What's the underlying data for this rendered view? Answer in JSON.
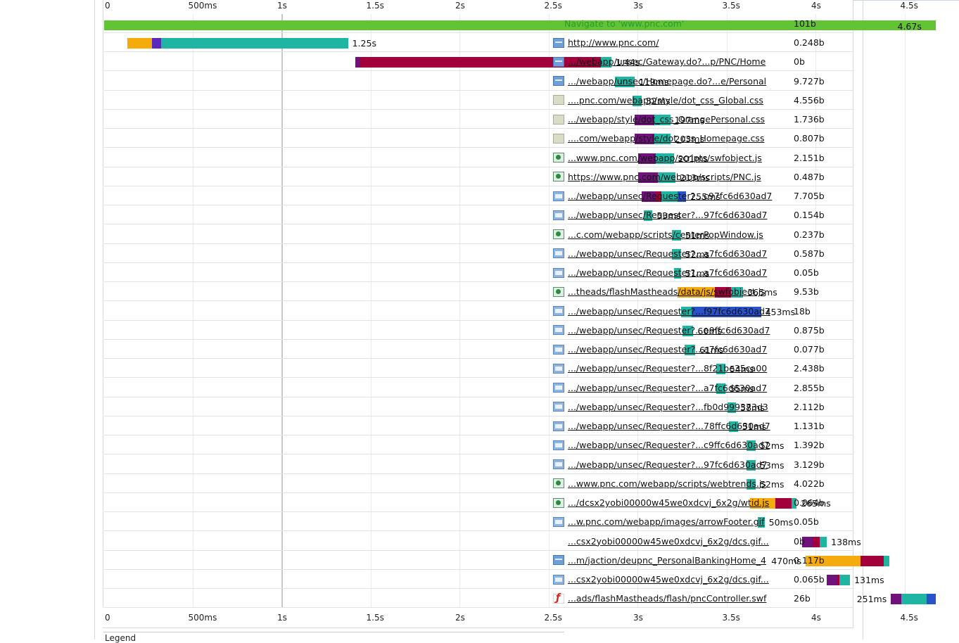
{
  "timeline": {
    "axis_max_seconds": 4.67,
    "ticks": [
      "0",
      "500ms",
      "1s",
      "1.5s",
      "2s",
      "2.5s",
      "3s",
      "3.5s",
      "4s",
      "4.5s"
    ],
    "tick_values": [
      0,
      0.5,
      1,
      1.5,
      2,
      2.5,
      3,
      3.5,
      4,
      4.5
    ]
  },
  "colors": {
    "navigate": "#62c434",
    "dns": "#f5ab0c",
    "connect": "#71117b",
    "ssl": "#a3003b",
    "send": "#5a2bbb",
    "wait": "#1fb5a3",
    "receive": "#2952cc"
  },
  "navigate": {
    "label": "Navigate to 'www.pnc.com'",
    "duration": "4.67s",
    "size": "101b",
    "end": 4.67
  },
  "requests": [
    {
      "url": "http://www.pnc.com/",
      "size": "0.248b",
      "icon": "html",
      "duration": "1.25s",
      "label_side": "right",
      "segments": [
        {
          "phase": "dns",
          "start": 0.13,
          "end": 0.27
        },
        {
          "phase": "send",
          "start": 0.27,
          "end": 0.32
        },
        {
          "phase": "wait",
          "start": 0.32,
          "end": 1.37
        }
      ]
    },
    {
      "url": ".../webapp/unsec/Gateway.do?...p/PNC/Home",
      "size": "0b",
      "icon": "html",
      "duration": "1.44s",
      "label_side": "right",
      "segments": [
        {
          "phase": "connect",
          "start": 1.41,
          "end": 1.44
        },
        {
          "phase": "ssl",
          "start": 1.44,
          "end": 2.79
        },
        {
          "phase": "wait",
          "start": 2.79,
          "end": 2.85
        }
      ]
    },
    {
      "url": ".../webapp/unsec/Homepage.do?...e/Personal",
      "size": "9.727b",
      "icon": "html",
      "duration": "119ms",
      "label_side": "right",
      "segments": [
        {
          "phase": "wait",
          "start": 2.87,
          "end": 2.98
        }
      ]
    },
    {
      "url": "....pnc.com/webapp/style/dot_css_Global.css",
      "size": "4.556b",
      "icon": "css",
      "duration": "52ms",
      "label_side": "right",
      "segments": [
        {
          "phase": "wait",
          "start": 2.97,
          "end": 3.02
        }
      ]
    },
    {
      "url": ".../webapp/style/dot_css_OrangePersonal.css",
      "size": "1.736b",
      "icon": "css",
      "duration": "197ms",
      "label_side": "right",
      "segments": [
        {
          "phase": "connect",
          "start": 2.98,
          "end": 3.09
        },
        {
          "phase": "wait",
          "start": 3.09,
          "end": 3.18
        }
      ]
    },
    {
      "url": "....com/webapp/style/dot_css_Homepage.css",
      "size": "0.807b",
      "icon": "css",
      "duration": "203ms",
      "label_side": "right",
      "segments": [
        {
          "phase": "connect",
          "start": 2.98,
          "end": 3.09
        },
        {
          "phase": "wait",
          "start": 3.09,
          "end": 3.18
        }
      ]
    },
    {
      "url": "...www.pnc.com/webapp/scripts/swfobject.js",
      "size": "2.151b",
      "icon": "js",
      "duration": "201ms",
      "label_side": "right",
      "segments": [
        {
          "phase": "connect",
          "start": 3.0,
          "end": 3.1
        },
        {
          "phase": "wait",
          "start": 3.1,
          "end": 3.2
        }
      ]
    },
    {
      "url": "https://www.pnc.com/webapp/scripts/PNC.js",
      "size": "0.487b",
      "icon": "js",
      "duration": "213ms",
      "label_side": "right",
      "segments": [
        {
          "phase": "connect",
          "start": 3.0,
          "end": 3.11
        },
        {
          "phase": "wait",
          "start": 3.11,
          "end": 3.21
        }
      ]
    },
    {
      "url": ".../webapp/unsec/Requester?...c97fc6d630ad7",
      "size": "7.705b",
      "icon": "generic",
      "duration": "255ms",
      "label_side": "right",
      "segments": [
        {
          "phase": "connect",
          "start": 3.02,
          "end": 3.1
        },
        {
          "phase": "ssl",
          "start": 3.1,
          "end": 3.13
        },
        {
          "phase": "wait",
          "start": 3.13,
          "end": 3.22
        },
        {
          "phase": "receive",
          "start": 3.22,
          "end": 3.27
        }
      ]
    },
    {
      "url": ".../webapp/unsec/Requester?...97fc6d630ad7",
      "size": "0.154b",
      "icon": "generic",
      "duration": "53ms",
      "label_side": "right",
      "segments": [
        {
          "phase": "wait",
          "start": 3.03,
          "end": 3.08
        }
      ]
    },
    {
      "url": "...c.com/webapp/scripts/centerPopWindow.js",
      "size": "0.237b",
      "icon": "js",
      "duration": "51ms",
      "label_side": "right",
      "segments": [
        {
          "phase": "wait",
          "start": 3.19,
          "end": 3.24
        }
      ]
    },
    {
      "url": ".../webapp/unsec/Requester?...a7fc6d630ad7",
      "size": "0.587b",
      "icon": "generic",
      "duration": "52ms",
      "label_side": "right",
      "segments": [
        {
          "phase": "wait",
          "start": 3.19,
          "end": 3.24
        }
      ]
    },
    {
      "url": ".../webapp/unsec/Requester?...a7fc6d630ad7",
      "size": "0.05b",
      "icon": "generic",
      "duration": "51ms",
      "label_side": "right",
      "segments": [
        {
          "phase": "wait",
          "start": 3.2,
          "end": 3.24
        }
      ]
    },
    {
      "url": "...theads/flashMastheads/data/js/swfobject.js",
      "size": "9.53b",
      "icon": "js",
      "duration": "365ms",
      "label_side": "right",
      "segments": [
        {
          "phase": "dns",
          "start": 3.22,
          "end": 3.43
        },
        {
          "phase": "ssl",
          "start": 3.43,
          "end": 3.52
        },
        {
          "phase": "wait",
          "start": 3.52,
          "end": 3.59
        }
      ]
    },
    {
      "url": ".../webapp/unsec/Requester?...f97fc6d630ad7",
      "size": "18b",
      "icon": "generic",
      "duration": "453ms",
      "label_side": "right",
      "segments": [
        {
          "phase": "wait",
          "start": 3.24,
          "end": 3.3
        },
        {
          "phase": "receive",
          "start": 3.3,
          "end": 3.69
        }
      ]
    },
    {
      "url": ".../webapp/unsec/Requester?...e9ffc6d630ad7",
      "size": "0.875b",
      "icon": "generic",
      "duration": "60ms",
      "label_side": "right",
      "segments": [
        {
          "phase": "wait",
          "start": 3.25,
          "end": 3.31
        }
      ]
    },
    {
      "url": ".../webapp/unsec/Requester?...a7fc6d630ad7",
      "size": "0.077b",
      "icon": "generic",
      "duration": "61ms",
      "label_side": "right",
      "segments": [
        {
          "phase": "wait",
          "start": 3.26,
          "end": 3.32
        }
      ]
    },
    {
      "url": ".../webapp/unsec/Requester?...8f21be35ca00",
      "size": "2.438b",
      "icon": "generic",
      "duration": "54ms",
      "label_side": "right",
      "segments": [
        {
          "phase": "wait",
          "start": 3.44,
          "end": 3.49
        }
      ]
    },
    {
      "url": ".../webapp/unsec/Requester?...a7fc6d630ad7",
      "size": "2.855b",
      "icon": "generic",
      "duration": "55ms",
      "label_side": "right",
      "segments": [
        {
          "phase": "wait",
          "start": 3.44,
          "end": 3.49
        }
      ]
    },
    {
      "url": ".../webapp/unsec/Requester?...fb0d999373d3",
      "size": "2.112b",
      "icon": "generic",
      "duration": "58ms",
      "label_side": "right",
      "segments": [
        {
          "phase": "wait",
          "start": 3.5,
          "end": 3.55
        }
      ]
    },
    {
      "url": ".../webapp/unsec/Requester?...78ffc6d630ad7",
      "size": "1.131b",
      "icon": "generic",
      "duration": "51ms",
      "label_side": "right",
      "segments": [
        {
          "phase": "wait",
          "start": 3.51,
          "end": 3.56
        }
      ]
    },
    {
      "url": ".../webapp/unsec/Requester?...c9ffc6d630ad7",
      "size": "1.392b",
      "icon": "generic",
      "duration": "52ms",
      "label_side": "right",
      "segments": [
        {
          "phase": "wait",
          "start": 3.61,
          "end": 3.66
        }
      ]
    },
    {
      "url": ".../webapp/unsec/Requester?...97fc6d630ad7",
      "size": "3.129b",
      "icon": "generic",
      "duration": "53ms",
      "label_side": "right",
      "segments": [
        {
          "phase": "wait",
          "start": 3.61,
          "end": 3.66
        }
      ]
    },
    {
      "url": "...www.pnc.com/webapp/scripts/webtrends.js",
      "size": "4.022b",
      "icon": "js",
      "duration": "52ms",
      "label_side": "right",
      "segments": [
        {
          "phase": "wait",
          "start": 3.61,
          "end": 3.66
        }
      ]
    },
    {
      "url": ".../dcsx2yobi00000w45we0xdcvj_6x2g/wtid.js",
      "size": "0.064b",
      "icon": "js",
      "duration": "265ms",
      "label_side": "right",
      "segments": [
        {
          "phase": "dns",
          "start": 3.63,
          "end": 3.77
        },
        {
          "phase": "ssl",
          "start": 3.77,
          "end": 3.86
        },
        {
          "phase": "wait",
          "start": 3.86,
          "end": 3.89
        }
      ]
    },
    {
      "url": "...w.pnc.com/webapp/images/arrowFooter.gif",
      "size": "0.05b",
      "icon": "generic",
      "duration": "50ms",
      "label_side": "right",
      "segments": [
        {
          "phase": "wait",
          "start": 3.67,
          "end": 3.71
        }
      ]
    },
    {
      "url": "...csx2yobi00000w45we0xdcvj_6x2g/dcs.gif...",
      "size": "0b",
      "icon": "none",
      "duration": "138ms",
      "label_side": "right",
      "segments": [
        {
          "phase": "connect",
          "start": 3.92,
          "end": 3.98
        },
        {
          "phase": "ssl",
          "start": 3.98,
          "end": 4.02
        },
        {
          "phase": "wait",
          "start": 4.02,
          "end": 4.06
        }
      ]
    },
    {
      "url": "...m/jaction/deupnc_PersonalBankingHome_4",
      "size": "0.117b",
      "icon": "html",
      "duration": "470ms",
      "label_side": "left",
      "segments": [
        {
          "phase": "dns",
          "start": 3.94,
          "end": 4.25
        },
        {
          "phase": "ssl",
          "start": 4.25,
          "end": 4.38
        },
        {
          "phase": "wait",
          "start": 4.38,
          "end": 4.41
        }
      ]
    },
    {
      "url": "...csx2yobi00000w45we0xdcvj_6x2g/dcs.gif...",
      "size": "0.065b",
      "icon": "generic",
      "duration": "131ms",
      "label_side": "right",
      "segments": [
        {
          "phase": "connect",
          "start": 4.06,
          "end": 4.12
        },
        {
          "phase": "ssl",
          "start": 4.12,
          "end": 4.13
        },
        {
          "phase": "wait",
          "start": 4.13,
          "end": 4.19
        }
      ]
    },
    {
      "url": "...ads/flashMastheads/flash/pncController.swf",
      "size": "26b",
      "icon": "flash",
      "duration": "251ms",
      "label_side": "left",
      "segments": [
        {
          "phase": "connect",
          "start": 4.42,
          "end": 4.48
        },
        {
          "phase": "wait",
          "start": 4.48,
          "end": 4.62
        },
        {
          "phase": "receive",
          "start": 4.62,
          "end": 4.67
        }
      ]
    }
  ],
  "legend": {
    "title": "Legend"
  }
}
